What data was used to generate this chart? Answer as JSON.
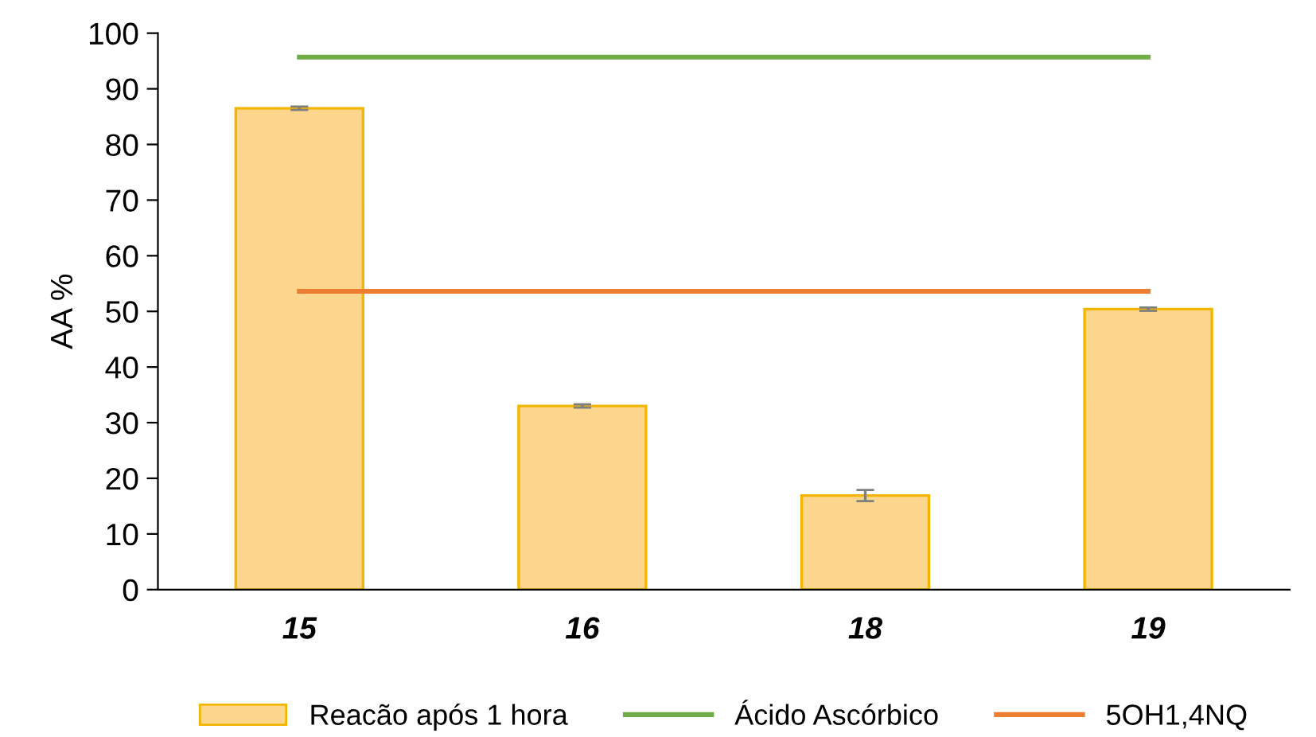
{
  "chart_data": {
    "type": "bar",
    "ylabel": "AA %",
    "categories": [
      "15",
      "16",
      "18",
      "19"
    ],
    "ylim": [
      0,
      100
    ],
    "yticks": [
      0,
      10,
      20,
      30,
      40,
      50,
      60,
      70,
      80,
      90,
      100
    ],
    "grid": false,
    "legend": "bottom",
    "series": [
      {
        "name": "Reacão após 1 hora",
        "color": "#fdd68e",
        "values": [
          86.5,
          33.0,
          16.9,
          50.4
        ],
        "errors": [
          0.3,
          0.3,
          1.0,
          0.3
        ]
      },
      {
        "name": "Ácido Ascórbico",
        "type": "line",
        "color": "#70ad47",
        "values": [
          95.7,
          95.7,
          95.7,
          95.7
        ]
      },
      {
        "name": "5OH1,4NQ",
        "type": "line",
        "color": "#ed7d31",
        "values": [
          53.6,
          53.6,
          53.6,
          53.6
        ]
      }
    ]
  }
}
